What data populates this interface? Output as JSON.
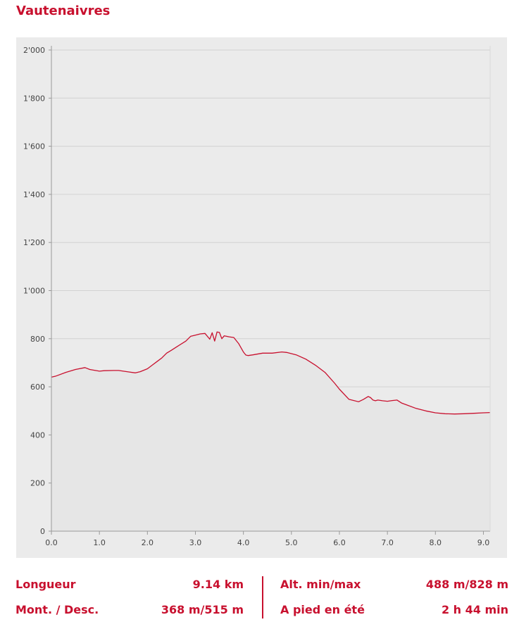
{
  "page": {
    "route_name": "Vautenaivres",
    "accent_color": "#c8102e",
    "area_color": "#e6e6e6",
    "panel_color": "#ebebeb",
    "grid_color": "#d2d2d2"
  },
  "chart_data": {
    "type": "area",
    "title": "",
    "xlabel": "",
    "ylabel": "",
    "xlim": [
      0,
      9.14
    ],
    "ylim": [
      0,
      2000
    ],
    "grid": true,
    "x_ticks": [
      "0.0",
      "1.0",
      "2.0",
      "3.0",
      "4.0",
      "5.0",
      "6.0",
      "7.0",
      "8.0",
      "9.0"
    ],
    "y_ticks": [
      "0",
      "200",
      "400",
      "600",
      "800",
      "1'000",
      "1'200",
      "1'400",
      "1'600",
      "1'800",
      "2'000"
    ],
    "series": [
      {
        "x": [
          0,
          0.1,
          0.3,
          0.5,
          0.7,
          0.8,
          1.0,
          1.1,
          1.3,
          1.4,
          1.5,
          1.6,
          1.75,
          1.85,
          2.0,
          2.1,
          2.2,
          2.3,
          2.4,
          2.5,
          2.6,
          2.8,
          2.9,
          3.0,
          3.1,
          3.2,
          3.3,
          3.35,
          3.4,
          3.45,
          3.5,
          3.55,
          3.6,
          3.65,
          3.7,
          3.8,
          3.9,
          4.0,
          4.05,
          4.1,
          4.2,
          4.4,
          4.6,
          4.8,
          4.9,
          5.1,
          5.3,
          5.5,
          5.7,
          5.9,
          6.0,
          6.2,
          6.4,
          6.5,
          6.6,
          6.65,
          6.7,
          6.75,
          6.8,
          6.9,
          7.0,
          7.1,
          7.2,
          7.3,
          7.4,
          7.6,
          7.8,
          8.0,
          8.2,
          8.4,
          8.6,
          8.8,
          9.0,
          9.14
        ],
        "y": [
          640,
          645,
          660,
          672,
          680,
          672,
          665,
          667,
          668,
          668,
          665,
          662,
          658,
          663,
          675,
          690,
          705,
          720,
          740,
          752,
          765,
          790,
          810,
          815,
          820,
          822,
          798,
          825,
          790,
          828,
          826,
          800,
          812,
          810,
          808,
          805,
          780,
          745,
          732,
          730,
          733,
          740,
          740,
          745,
          743,
          733,
          715,
          690,
          660,
          615,
          590,
          548,
          538,
          548,
          560,
          555,
          545,
          542,
          545,
          542,
          540,
          543,
          545,
          532,
          525,
          510,
          500,
          492,
          488,
          487,
          488,
          490,
          492,
          493
        ]
      }
    ]
  },
  "stats": {
    "length_label": "Longueur",
    "length_value": "9.14 km",
    "ascent_label": "Mont. / Desc.",
    "ascent_value": "368 m/515 m",
    "altitude_label": "Alt. min/max",
    "altitude_value": "488 m/828 m",
    "time_label": "A pied en été",
    "time_value": "2 h 44 min"
  }
}
